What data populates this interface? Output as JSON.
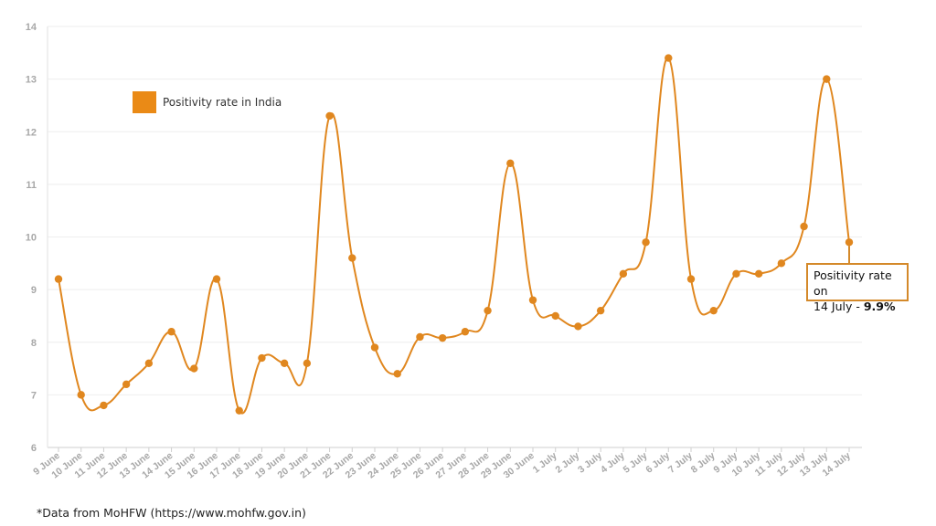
{
  "chart_data": {
    "type": "line",
    "categories": [
      "9 June",
      "10 June",
      "11 June",
      "12 June",
      "13 June",
      "14 June",
      "15 June",
      "16 June",
      "17 June",
      "18 June",
      "19 June",
      "20 June",
      "21 June",
      "22 June",
      "23 June",
      "24 June",
      "25 June",
      "26 June",
      "27 June",
      "28 June",
      "29 June",
      "30 June",
      "1 July",
      "2 July",
      "3 July",
      "4 July",
      "5 July",
      "6 July",
      "7 July",
      "8 July",
      "9 July",
      "10 July",
      "11 July",
      "12 July",
      "13 July",
      "14 July"
    ],
    "series": [
      {
        "name": "Positivity rate in India",
        "values": [
          9.2,
          7.0,
          6.8,
          7.2,
          7.6,
          8.2,
          7.5,
          9.2,
          6.7,
          7.7,
          7.6,
          7.6,
          12.3,
          9.6,
          7.9,
          7.4,
          8.1,
          8.08,
          8.2,
          8.6,
          11.4,
          8.8,
          8.5,
          8.3,
          8.6,
          9.3,
          9.9,
          13.4,
          9.2,
          8.6,
          9.3,
          9.3,
          9.5,
          10.2,
          13.0,
          9.9
        ]
      }
    ],
    "yticks": [
      "6",
      "7",
      "8",
      "9",
      "10",
      "11",
      "12",
      "13",
      "14"
    ],
    "ylim": [
      6,
      14
    ],
    "grid": true,
    "legend": "top-left",
    "color": "#e0871f",
    "annotation": {
      "line1": "Positivity rate on",
      "line2_prefix": "14 July - ",
      "line2_value": "9.9%"
    },
    "footnote": "*Data from MoHFW (https://www.mohfw.gov.in)"
  }
}
